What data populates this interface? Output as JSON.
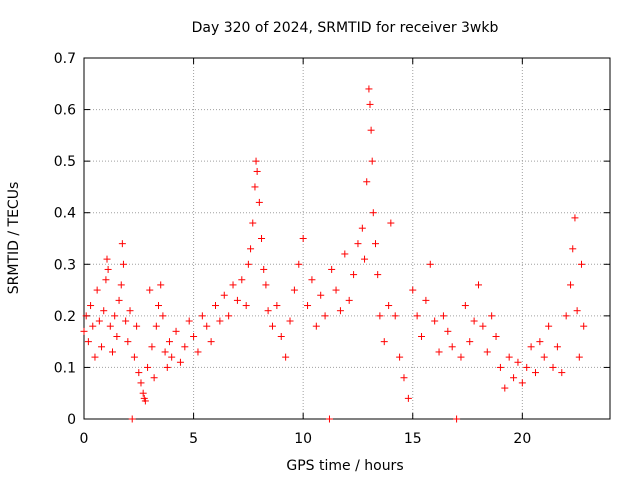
{
  "chart_data": {
    "type": "scatter",
    "title": "Day 320 of 2024, SRMTID for receiver 3wkb",
    "xlabel": "GPS time / hours",
    "ylabel": "SRMTID / TECUs",
    "xlim": [
      0,
      24
    ],
    "ylim": [
      0,
      0.7
    ],
    "xticks": [
      0,
      5,
      10,
      15,
      20
    ],
    "yticks": [
      0,
      0.1,
      0.2,
      0.3,
      0.4,
      0.5,
      0.6,
      0.7
    ],
    "xtick_labels": [
      "0",
      "5",
      "10",
      "15",
      "20"
    ],
    "ytick_labels": [
      "0",
      "0.1",
      "0.2",
      "0.3",
      "0.4",
      "0.5",
      "0.6",
      "0.7"
    ],
    "grid": true,
    "marker": "plus",
    "color": "#ff0000",
    "series": [
      {
        "name": "SRMTID",
        "points": [
          [
            0.0,
            0.17
          ],
          [
            0.1,
            0.2
          ],
          [
            0.2,
            0.15
          ],
          [
            0.3,
            0.22
          ],
          [
            0.4,
            0.18
          ],
          [
            0.5,
            0.12
          ],
          [
            0.6,
            0.25
          ],
          [
            0.7,
            0.19
          ],
          [
            0.8,
            0.14
          ],
          [
            0.9,
            0.21
          ],
          [
            1.0,
            0.27
          ],
          [
            1.05,
            0.31
          ],
          [
            1.1,
            0.29
          ],
          [
            1.2,
            0.18
          ],
          [
            1.3,
            0.13
          ],
          [
            1.4,
            0.2
          ],
          [
            1.5,
            0.16
          ],
          [
            1.6,
            0.23
          ],
          [
            1.7,
            0.26
          ],
          [
            1.75,
            0.34
          ],
          [
            1.8,
            0.3
          ],
          [
            1.9,
            0.19
          ],
          [
            2.0,
            0.15
          ],
          [
            2.1,
            0.21
          ],
          [
            2.2,
            0.0
          ],
          [
            2.3,
            0.12
          ],
          [
            2.4,
            0.18
          ],
          [
            2.5,
            0.09
          ],
          [
            2.6,
            0.07
          ],
          [
            2.7,
            0.05
          ],
          [
            2.75,
            0.04
          ],
          [
            2.8,
            0.035
          ],
          [
            2.9,
            0.1
          ],
          [
            3.0,
            0.25
          ],
          [
            3.1,
            0.14
          ],
          [
            3.2,
            0.08
          ],
          [
            3.3,
            0.18
          ],
          [
            3.4,
            0.22
          ],
          [
            3.5,
            0.26
          ],
          [
            3.6,
            0.2
          ],
          [
            3.7,
            0.13
          ],
          [
            3.8,
            0.1
          ],
          [
            3.9,
            0.15
          ],
          [
            4.0,
            0.12
          ],
          [
            4.2,
            0.17
          ],
          [
            4.4,
            0.11
          ],
          [
            4.6,
            0.14
          ],
          [
            4.8,
            0.19
          ],
          [
            5.0,
            0.16
          ],
          [
            5.2,
            0.13
          ],
          [
            5.4,
            0.2
          ],
          [
            5.6,
            0.18
          ],
          [
            5.8,
            0.15
          ],
          [
            6.0,
            0.22
          ],
          [
            6.2,
            0.19
          ],
          [
            6.4,
            0.24
          ],
          [
            6.6,
            0.2
          ],
          [
            6.8,
            0.26
          ],
          [
            7.0,
            0.23
          ],
          [
            7.2,
            0.27
          ],
          [
            7.4,
            0.22
          ],
          [
            7.5,
            0.3
          ],
          [
            7.6,
            0.33
          ],
          [
            7.7,
            0.38
          ],
          [
            7.8,
            0.45
          ],
          [
            7.85,
            0.5
          ],
          [
            7.9,
            0.48
          ],
          [
            8.0,
            0.42
          ],
          [
            8.1,
            0.35
          ],
          [
            8.2,
            0.29
          ],
          [
            8.3,
            0.26
          ],
          [
            8.4,
            0.21
          ],
          [
            8.6,
            0.18
          ],
          [
            8.8,
            0.22
          ],
          [
            9.0,
            0.16
          ],
          [
            9.2,
            0.12
          ],
          [
            9.4,
            0.19
          ],
          [
            9.6,
            0.25
          ],
          [
            9.8,
            0.3
          ],
          [
            10.0,
            0.35
          ],
          [
            10.2,
            0.22
          ],
          [
            10.4,
            0.27
          ],
          [
            10.6,
            0.18
          ],
          [
            10.8,
            0.24
          ],
          [
            11.0,
            0.2
          ],
          [
            11.2,
            0.0
          ],
          [
            11.3,
            0.29
          ],
          [
            11.5,
            0.25
          ],
          [
            11.7,
            0.21
          ],
          [
            11.9,
            0.32
          ],
          [
            12.1,
            0.23
          ],
          [
            12.3,
            0.28
          ],
          [
            12.5,
            0.34
          ],
          [
            12.7,
            0.37
          ],
          [
            12.8,
            0.31
          ],
          [
            12.9,
            0.46
          ],
          [
            13.0,
            0.64
          ],
          [
            13.05,
            0.61
          ],
          [
            13.1,
            0.56
          ],
          [
            13.15,
            0.5
          ],
          [
            13.2,
            0.4
          ],
          [
            13.3,
            0.34
          ],
          [
            13.4,
            0.28
          ],
          [
            13.5,
            0.2
          ],
          [
            13.7,
            0.15
          ],
          [
            13.9,
            0.22
          ],
          [
            14.0,
            0.38
          ],
          [
            14.2,
            0.2
          ],
          [
            14.4,
            0.12
          ],
          [
            14.6,
            0.08
          ],
          [
            14.8,
            0.04
          ],
          [
            15.0,
            0.25
          ],
          [
            15.2,
            0.2
          ],
          [
            15.4,
            0.16
          ],
          [
            15.6,
            0.23
          ],
          [
            15.8,
            0.3
          ],
          [
            16.0,
            0.19
          ],
          [
            16.2,
            0.13
          ],
          [
            16.4,
            0.2
          ],
          [
            16.6,
            0.17
          ],
          [
            16.8,
            0.14
          ],
          [
            17.0,
            0.0
          ],
          [
            17.2,
            0.12
          ],
          [
            17.4,
            0.22
          ],
          [
            17.6,
            0.15
          ],
          [
            17.8,
            0.19
          ],
          [
            18.0,
            0.26
          ],
          [
            18.2,
            0.18
          ],
          [
            18.4,
            0.13
          ],
          [
            18.6,
            0.2
          ],
          [
            18.8,
            0.16
          ],
          [
            19.0,
            0.1
          ],
          [
            19.2,
            0.06
          ],
          [
            19.4,
            0.12
          ],
          [
            19.6,
            0.08
          ],
          [
            19.8,
            0.11
          ],
          [
            20.0,
            0.07
          ],
          [
            20.2,
            0.1
          ],
          [
            20.4,
            0.14
          ],
          [
            20.6,
            0.09
          ],
          [
            20.8,
            0.15
          ],
          [
            21.0,
            0.12
          ],
          [
            21.2,
            0.18
          ],
          [
            21.4,
            0.1
          ],
          [
            21.6,
            0.14
          ],
          [
            21.8,
            0.09
          ],
          [
            22.0,
            0.2
          ],
          [
            22.2,
            0.26
          ],
          [
            22.3,
            0.33
          ],
          [
            22.4,
            0.39
          ],
          [
            22.5,
            0.21
          ],
          [
            22.6,
            0.12
          ],
          [
            22.7,
            0.3
          ],
          [
            22.8,
            0.18
          ]
        ]
      }
    ]
  }
}
